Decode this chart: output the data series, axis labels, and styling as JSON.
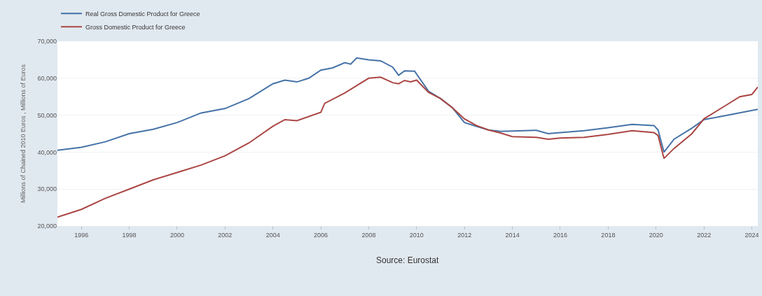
{
  "chart_data": {
    "type": "line",
    "ylabel": "Millions of Chained 2010 Euros , Millions of Euros",
    "xlim": [
      "1995-01",
      "2024-04"
    ],
    "xticks": [
      {
        "value": "1996-01",
        "label": "1996"
      },
      {
        "value": "1998-01",
        "label": "1998"
      },
      {
        "value": "2000-01",
        "label": "2000"
      },
      {
        "value": "2002-01",
        "label": "2002"
      },
      {
        "value": "2004-01",
        "label": "2004"
      },
      {
        "value": "2006-01",
        "label": "2006"
      },
      {
        "value": "2008-01",
        "label": "2008"
      },
      {
        "value": "2010-01",
        "label": "2010"
      },
      {
        "value": "2012-01",
        "label": "2012"
      },
      {
        "value": "2014-01",
        "label": "2014"
      },
      {
        "value": "2016-01",
        "label": "2016"
      },
      {
        "value": "2018-01",
        "label": "2018"
      },
      {
        "value": "2020-01",
        "label": "2020"
      },
      {
        "value": "2022-01",
        "label": "2022"
      },
      {
        "value": "2024-01",
        "label": "2024"
      }
    ],
    "ylim": [
      20000,
      70000
    ],
    "yticks": [
      {
        "value": 20000,
        "label": "20,000"
      },
      {
        "value": 30000,
        "label": "30,000"
      },
      {
        "value": 40000,
        "label": "40,000"
      },
      {
        "value": 50000,
        "label": "50,000"
      },
      {
        "value": 60000,
        "label": "60,000"
      },
      {
        "value": 70000,
        "label": "70,000"
      }
    ],
    "grid": "y",
    "legend": "top left",
    "marker": "none",
    "line_style": "solid",
    "annotations": [
      "Source: Eurostat"
    ],
    "series": [
      {
        "name": "Real Gross Domestic Product for Greece",
        "color": "#4572a7",
        "x": [
          "1995-01",
          "1996-01",
          "1997-01",
          "1998-01",
          "1999-01",
          "2000-01",
          "2001-01",
          "2002-01",
          "2003-01",
          "2004-01",
          "2004-07",
          "2005-01",
          "2005-07",
          "2006-01",
          "2006-07",
          "2007-01",
          "2007-04",
          "2007-07",
          "2008-01",
          "2008-07",
          "2009-01",
          "2009-04",
          "2009-07",
          "2009-12",
          "2010-07",
          "2011-01",
          "2011-07",
          "2012-01",
          "2012-07",
          "2013-01",
          "2013-07",
          "2014-01",
          "2015-01",
          "2015-07",
          "2016-01",
          "2017-01",
          "2018-01",
          "2019-01",
          "2019-12",
          "2020-02",
          "2020-05",
          "2020-10",
          "2021-07",
          "2022-01",
          "2023-01",
          "2024-04"
        ],
        "values": [
          40500,
          41300,
          42800,
          45000,
          46200,
          48000,
          50600,
          51800,
          54500,
          58500,
          59500,
          59000,
          60000,
          62200,
          62800,
          64200,
          63800,
          65500,
          65000,
          64700,
          63000,
          60800,
          62000,
          61900,
          56500,
          54500,
          52000,
          48000,
          47000,
          46000,
          45600,
          45700,
          45900,
          45000,
          45300,
          45800,
          46600,
          47500,
          47200,
          46000,
          40000,
          43500,
          46500,
          48800,
          50000,
          51600
        ]
      },
      {
        "name": "Gross Domestic Product for Greece",
        "color": "#aa4643",
        "x": [
          "1995-01",
          "1996-01",
          "1997-01",
          "1998-01",
          "1999-01",
          "2000-01",
          "2001-01",
          "2002-01",
          "2003-01",
          "2004-01",
          "2004-07",
          "2005-01",
          "2006-01",
          "2006-03",
          "2007-01",
          "2007-07",
          "2008-01",
          "2008-07",
          "2009-01",
          "2009-04",
          "2009-07",
          "2009-10",
          "2010-01",
          "2010-07",
          "2011-01",
          "2011-07",
          "2012-01",
          "2012-07",
          "2013-01",
          "2013-07",
          "2014-01",
          "2015-01",
          "2015-07",
          "2016-01",
          "2017-01",
          "2018-01",
          "2019-01",
          "2019-12",
          "2020-02",
          "2020-05",
          "2020-10",
          "2021-07",
          "2022-01",
          "2023-01",
          "2023-07",
          "2024-01",
          "2024-04"
        ],
        "values": [
          22400,
          24500,
          27500,
          30000,
          32500,
          34500,
          36500,
          39000,
          42500,
          47000,
          48800,
          48500,
          50800,
          53200,
          56000,
          58000,
          60000,
          60300,
          58800,
          58500,
          59400,
          59000,
          59500,
          56200,
          54500,
          52000,
          49000,
          47200,
          46000,
          45200,
          44200,
          44000,
          43500,
          43800,
          44000,
          44800,
          45800,
          45300,
          44500,
          38300,
          41000,
          45000,
          49000,
          53000,
          55000,
          55600,
          57600
        ]
      }
    ]
  }
}
